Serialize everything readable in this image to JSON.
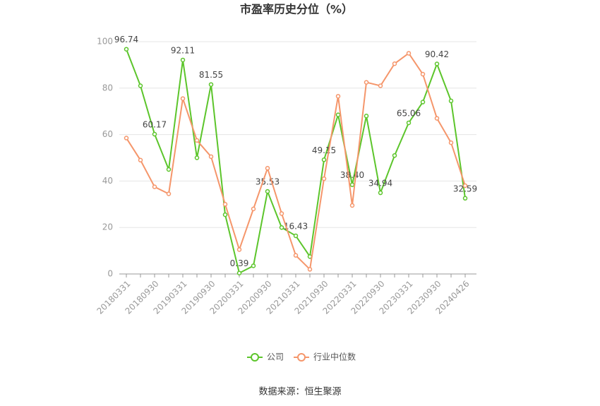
{
  "chart_data": {
    "type": "line",
    "title": "市盈率历史分位（%）",
    "categories": [
      "20180331",
      null,
      "20180930",
      null,
      "20190331",
      null,
      "20190930",
      null,
      "20200331",
      null,
      "20200930",
      null,
      "20210331",
      null,
      "20210930",
      null,
      "20220331",
      null,
      "20220930",
      null,
      "20230331",
      null,
      "20230930",
      null,
      "20240426"
    ],
    "series": [
      {
        "name": "公司",
        "color": "#5cc52b",
        "values": [
          96.74,
          81,
          60.17,
          45,
          92.11,
          50,
          81.55,
          25.5,
          0.39,
          3.5,
          35.53,
          20,
          16.43,
          7.5,
          49.15,
          68.5,
          38.4,
          68,
          34.94,
          51,
          65.06,
          74,
          90.42,
          74.5,
          32.59
        ],
        "value_labels": [
          "96.74",
          null,
          "60.17",
          null,
          "92.11",
          null,
          "81.55",
          null,
          "0.39",
          null,
          "35.53",
          null,
          "16.43",
          null,
          "49.15",
          null,
          "38.40",
          null,
          "34.94",
          null,
          "65.06",
          null,
          "90.42",
          null,
          "32.59"
        ]
      },
      {
        "name": "行业中位数",
        "color": "#f5966b",
        "values": [
          58.5,
          49,
          37.5,
          34.5,
          75.5,
          57.5,
          50.5,
          30,
          10.5,
          28,
          45.5,
          26,
          8,
          2,
          41,
          76.5,
          29.5,
          82.5,
          81,
          90.5,
          95,
          86,
          67,
          56.5,
          38
        ]
      }
    ],
    "ylim": [
      0,
      100
    ],
    "yticks": [
      0,
      20,
      40,
      60,
      80,
      100
    ],
    "grid": true,
    "legend": "bottom",
    "source": "数据来源：恒生聚源"
  }
}
